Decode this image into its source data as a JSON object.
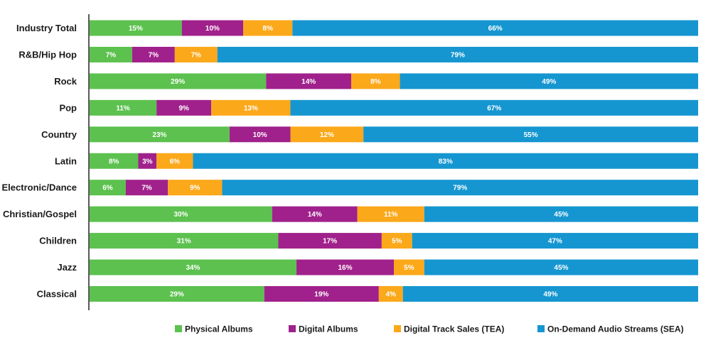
{
  "chart_data": {
    "type": "bar",
    "orientation": "horizontal",
    "stacked": true,
    "categories": [
      "Industry Total",
      "R&B/Hip Hop",
      "Rock",
      "Pop",
      "Country",
      "Latin",
      "Electronic/Dance",
      "Christian/Gospel",
      "Children",
      "Jazz",
      "Classical"
    ],
    "series": [
      {
        "name": "Physical Albums",
        "color": "#5cc14e",
        "values": [
          15,
          7,
          29,
          11,
          23,
          8,
          6,
          30,
          31,
          34,
          29
        ]
      },
      {
        "name": "Digital Albums",
        "color": "#a0218b",
        "values": [
          10,
          7,
          14,
          9,
          10,
          3,
          7,
          14,
          17,
          16,
          19
        ]
      },
      {
        "name": "Digital Track Sales (TEA)",
        "color": "#fba81a",
        "values": [
          8,
          7,
          8,
          13,
          12,
          6,
          9,
          11,
          5,
          5,
          4
        ]
      },
      {
        "name": "On-Demand Audio Streams (SEA)",
        "color": "#1596d0",
        "values": [
          66,
          79,
          49,
          67,
          55,
          83,
          79,
          45,
          47,
          45,
          49
        ]
      }
    ],
    "data_labels": [
      [
        "15%",
        "7%",
        "29%",
        "11%",
        "23%",
        "8%",
        "6%",
        "30%",
        "31%",
        "34%",
        "29%"
      ],
      [
        "10%",
        "7%",
        "14%",
        "9%",
        "10%",
        "3%",
        "7%",
        "14%",
        "17%",
        "16%",
        "19%"
      ],
      [
        "8%",
        "7%",
        "8%",
        "13%",
        "12%",
        "6%",
        "9%",
        "11%",
        "5%",
        "5%",
        "4%"
      ],
      [
        "66%",
        "79%",
        "49%",
        "67%",
        "55%",
        "83%",
        "79%",
        "45%",
        "47%",
        "45%",
        "49%"
      ]
    ],
    "title": "",
    "xlabel": "",
    "ylabel": "",
    "grid": false,
    "legend_position": "bottom"
  }
}
